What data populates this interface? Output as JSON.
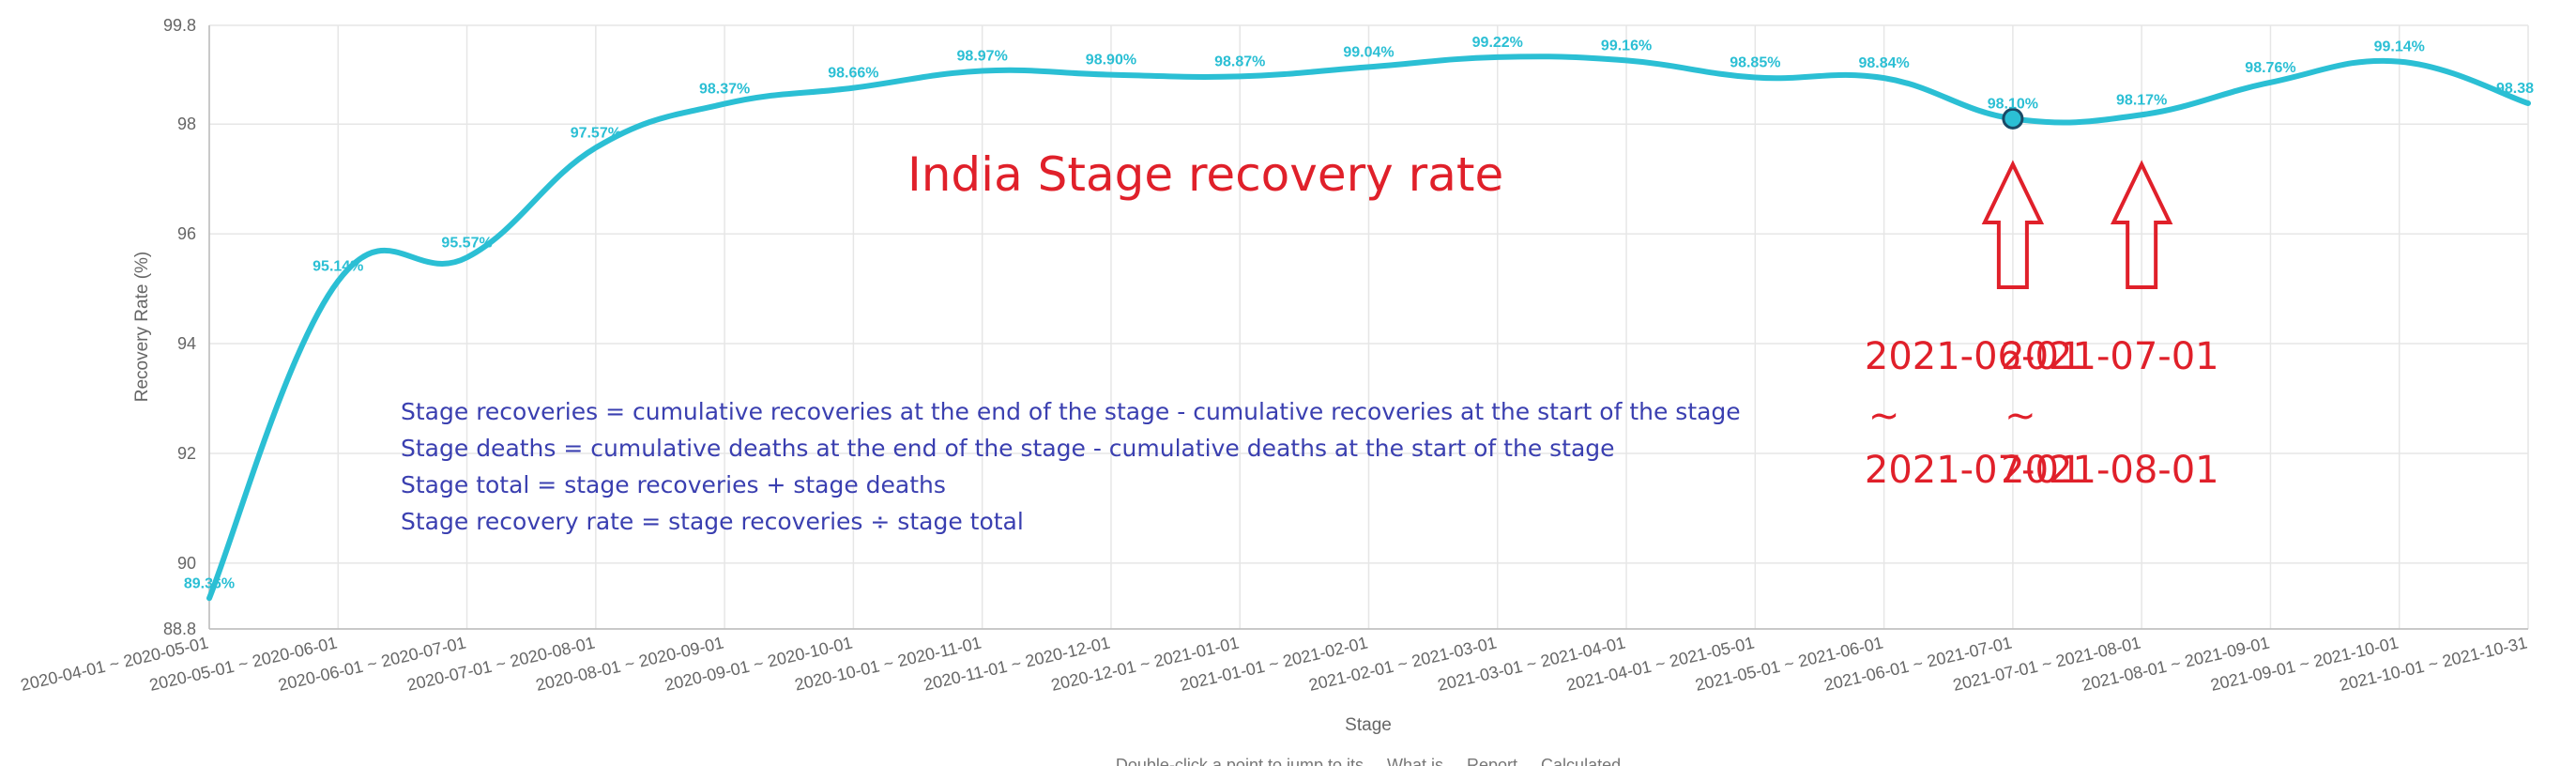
{
  "chart_data": {
    "type": "line",
    "title": "",
    "xlabel": "Stage",
    "ylabel": "Recovery Rate (%)",
    "ylim": [
      88.8,
      99.8
    ],
    "y_ticks": [
      88.8,
      90,
      92,
      94,
      96,
      98,
      99.8
    ],
    "grid": true,
    "line_color": "#2bbfd4",
    "categories": [
      "2020-04-01 ~ 2020-05-01",
      "2020-05-01 ~ 2020-06-01",
      "2020-06-01 ~ 2020-07-01",
      "2020-07-01 ~ 2020-08-01",
      "2020-08-01 ~ 2020-09-01",
      "2020-09-01 ~ 2020-10-01",
      "2020-10-01 ~ 2020-11-01",
      "2020-11-01 ~ 2020-12-01",
      "2020-12-01 ~ 2021-01-01",
      "2021-01-01 ~ 2021-02-01",
      "2021-02-01 ~ 2021-03-01",
      "2021-03-01 ~ 2021-04-01",
      "2021-04-01 ~ 2021-05-01",
      "2021-05-01 ~ 2021-06-01",
      "2021-06-01 ~ 2021-07-01",
      "2021-07-01 ~ 2021-08-01",
      "2021-08-01 ~ 2021-09-01",
      "2021-09-01 ~ 2021-10-01",
      "2021-10-01 ~ 2021-10-31"
    ],
    "values": [
      89.36,
      95.14,
      95.57,
      97.57,
      98.37,
      98.66,
      98.97,
      98.9,
      98.87,
      99.04,
      99.22,
      99.16,
      98.85,
      98.84,
      98.1,
      98.17,
      98.76,
      99.14,
      98.38
    ],
    "data_labels": [
      "89.36%",
      "95.14%",
      "95.57%",
      "97.57%",
      "98.37%",
      "98.66%",
      "98.97%",
      "98.90%",
      "98.87%",
      "99.04%",
      "99.22%",
      "99.16%",
      "98.85%",
      "98.84%",
      "98.10%",
      "98.17%",
      "98.76%",
      "99.14%",
      "98.38"
    ],
    "highlighted_index": 14,
    "annotations": {
      "title": "India Stage recovery rate",
      "formulas": [
        "Stage recoveries = cumulative recoveries at the end of the stage - cumulative recoveries at the start of the stage",
        "Stage deaths = cumulative deaths at the end of the stage - cumulative deaths at the start of the stage",
        "Stage total = stage recoveries + stage deaths",
        "Stage recovery rate = stage recoveries ÷ stage total"
      ],
      "ranges": [
        {
          "start": "2021-06-01",
          "sep": "~",
          "end": "2021-07-01",
          "stage_index": 14
        },
        {
          "start": "2021-07-01",
          "sep": "~",
          "end": "2021-08-01",
          "stage_index": 15
        }
      ],
      "arrow_color": "#e0202a",
      "formula_color": "#3a3fb0"
    },
    "legend_hint": "Double-click a point to jump to its ... What is ... Report ... Calculated"
  }
}
